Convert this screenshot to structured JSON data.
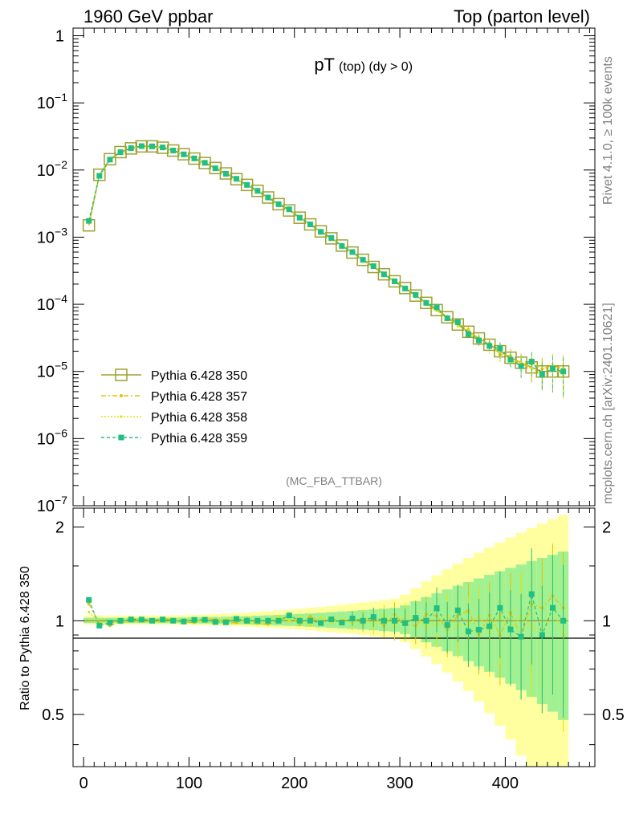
{
  "header": {
    "left": "1960 GeV ppbar",
    "right": "Top (parton level)"
  },
  "side_labels": {
    "rivet": "Rivet 4.1.0, ≥ 100k events",
    "mcplots": "mcplots.cern.ch [arXiv:2401.10621]"
  },
  "chart_data": {
    "type": "line",
    "title": "pT",
    "title_sub": "(top)  (dy > 0)",
    "analysis_tag": "(MC_FBA_TTBAR)",
    "xlabel": "",
    "ylabel_main": "",
    "ylabel_ratio": "Ratio to Pythia 6.428 350",
    "x_range": [
      -10,
      485
    ],
    "y_range_main": [
      1e-07,
      1.3
    ],
    "y_scale_main": "log",
    "y_range_ratio": [
      0.34,
      2.3
    ],
    "y_scale_ratio": "log",
    "x_ticks": [
      {
        "v": 0,
        "label": "0"
      },
      {
        "v": 100,
        "label": "100"
      },
      {
        "v": 200,
        "label": "200"
      },
      {
        "v": 300,
        "label": "300"
      },
      {
        "v": 400,
        "label": "400"
      }
    ],
    "y_ticks_main": [
      {
        "v": 1,
        "b": "1",
        "e": ""
      },
      {
        "v": 0.1,
        "b": "10",
        "e": "−1"
      },
      {
        "v": 0.01,
        "b": "10",
        "e": "−2"
      },
      {
        "v": 0.001,
        "b": "10",
        "e": "−3"
      },
      {
        "v": 0.0001,
        "b": "10",
        "e": "−4"
      },
      {
        "v": 1e-05,
        "b": "10",
        "e": "−5"
      },
      {
        "v": 1e-06,
        "b": "10",
        "e": "−6"
      },
      {
        "v": 1e-07,
        "b": "10",
        "e": "−7"
      }
    ],
    "y_ticks_ratio": [
      {
        "v": 0.5,
        "label": "0.5"
      },
      {
        "v": 1,
        "label": "1"
      },
      {
        "v": 2,
        "label": "2"
      }
    ],
    "legend_position": "lower-left",
    "series": [
      {
        "name": "Pythia 6.428 350",
        "color": "#a0a030",
        "dash": "",
        "marker": "open-square",
        "x": [
          5,
          15,
          25,
          35,
          45,
          55,
          65,
          75,
          85,
          95,
          105,
          115,
          125,
          135,
          145,
          155,
          165,
          175,
          185,
          195,
          205,
          215,
          225,
          235,
          245,
          255,
          265,
          275,
          285,
          295,
          305,
          315,
          325,
          335,
          345,
          355,
          365,
          375,
          385,
          395,
          405,
          415,
          425,
          435,
          445,
          455
        ],
        "y": [
          0.0015,
          0.0085,
          0.0145,
          0.0185,
          0.021,
          0.0225,
          0.0225,
          0.0215,
          0.0195,
          0.0172,
          0.0148,
          0.0127,
          0.0107,
          0.0089,
          0.0073,
          0.006,
          0.0049,
          0.0039,
          0.0031,
          0.0025,
          0.00195,
          0.00155,
          0.00122,
          0.00096,
          0.00075,
          0.00059,
          0.00046,
          0.00036,
          0.00028,
          0.00022,
          0.000175,
          0.000135,
          0.000105,
          8.2e-05,
          6.4e-05,
          5e-05,
          3.9e-05,
          3.1e-05,
          2.5e-05,
          2e-05,
          1.6e-05,
          1.35e-05,
          1.15e-05,
          1e-05,
          1e-05,
          1e-05
        ]
      },
      {
        "name": "Pythia 6.428 357",
        "color": "#e8c000",
        "dash": "6,3,2,3",
        "marker": "small-star",
        "x": [
          5,
          15,
          25,
          35,
          45,
          55,
          65,
          75,
          85,
          95,
          105,
          115,
          125,
          135,
          145,
          155,
          165,
          175,
          185,
          195,
          205,
          215,
          225,
          235,
          245,
          255,
          265,
          275,
          285,
          295,
          305,
          315,
          325,
          335,
          345,
          355,
          365,
          375,
          385,
          395,
          405,
          415,
          425,
          435,
          445,
          455
        ],
        "y": [
          0.0017,
          0.0083,
          0.014,
          0.0183,
          0.0213,
          0.0228,
          0.0226,
          0.0218,
          0.0197,
          0.017,
          0.0146,
          0.0129,
          0.0108,
          0.0088,
          0.0072,
          0.0061,
          0.0048,
          0.0038,
          0.0031,
          0.0026,
          0.0019,
          0.0016,
          0.0012,
          0.00098,
          0.00074,
          0.0006,
          0.00045,
          0.00037,
          0.00027,
          0.00023,
          0.00017,
          0.00013,
          0.00011,
          8.5e-05,
          6e-05,
          5.2e-05,
          4.2e-05,
          2.8e-05,
          2.6e-05,
          1.8e-05,
          1.7e-05,
          1.2e-05,
          1.3e-05,
          1.1e-05,
          1.2e-05,
          1.1e-05
        ]
      },
      {
        "name": "Pythia 6.428 358",
        "color": "#e8e000",
        "dash": "2,2",
        "marker": "small-dot",
        "x": [
          5,
          15,
          25,
          35,
          45,
          55,
          65,
          75,
          85,
          95,
          105,
          115,
          125,
          135,
          145,
          155,
          165,
          175,
          185,
          195,
          205,
          215,
          225,
          235,
          245,
          255,
          265,
          275,
          285,
          295,
          305,
          315,
          325,
          335,
          345,
          355,
          365,
          375,
          385,
          395,
          405,
          415,
          425,
          435,
          445,
          455
        ],
        "y": [
          0.0016,
          0.0084,
          0.0144,
          0.0182,
          0.0209,
          0.0224,
          0.0223,
          0.0214,
          0.0194,
          0.0173,
          0.0149,
          0.0126,
          0.0106,
          0.009,
          0.0074,
          0.0059,
          0.0048,
          0.0039,
          0.0032,
          0.0025,
          0.002,
          0.0015,
          0.00125,
          0.00095,
          0.00076,
          0.00058,
          0.00047,
          0.00035,
          0.00029,
          0.00021,
          0.00018,
          0.00014,
          0.0001,
          8e-05,
          6.6e-05,
          4.8e-05,
          3.8e-05,
          3.2e-05,
          2.3e-05,
          2.1e-05,
          1.5e-05,
          1.4e-05,
          1.1e-05,
          9e-06,
          1.1e-05,
          9e-06
        ]
      },
      {
        "name": "Pythia 6.428 359",
        "color": "#20c080",
        "dash": "4,3",
        "marker": "filled-square",
        "x": [
          5,
          15,
          25,
          35,
          45,
          55,
          65,
          75,
          85,
          95,
          105,
          115,
          125,
          135,
          145,
          155,
          165,
          175,
          185,
          195,
          205,
          215,
          225,
          235,
          245,
          255,
          265,
          275,
          285,
          295,
          305,
          315,
          325,
          335,
          345,
          355,
          365,
          375,
          385,
          395,
          405,
          415,
          425,
          435,
          445,
          455
        ],
        "y": [
          0.00175,
          0.0082,
          0.0143,
          0.0185,
          0.0212,
          0.0227,
          0.0225,
          0.0217,
          0.0195,
          0.0171,
          0.0149,
          0.0128,
          0.0106,
          0.0088,
          0.0074,
          0.006,
          0.0049,
          0.0039,
          0.0031,
          0.0026,
          0.00195,
          0.00155,
          0.0012,
          0.00097,
          0.00074,
          0.0006,
          0.00046,
          0.00037,
          0.00028,
          0.00022,
          0.000172,
          0.000138,
          0.000105,
          9e-05,
          6.2e-05,
          5.4e-05,
          3.6e-05,
          2.9e-05,
          2.4e-05,
          2.2e-05,
          1.5e-05,
          1.2e-05,
          1.4e-05,
          9e-06,
          1.1e-05,
          1e-05
        ]
      }
    ]
  }
}
